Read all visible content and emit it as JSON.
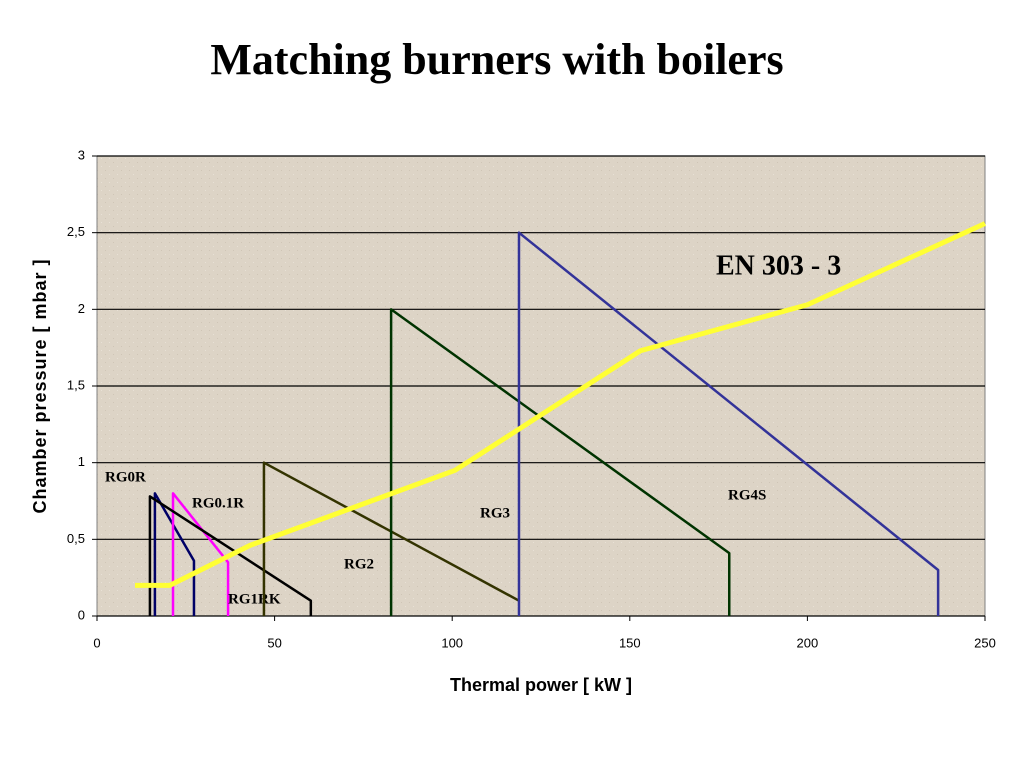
{
  "chart_data": {
    "type": "line",
    "title": "Matching burners with boilers",
    "x_label": "Thermal power [ kW ]",
    "y_label": "Chamber pressure [ mbar ]",
    "xlim": [
      0,
      250
    ],
    "xticks": [
      0,
      50,
      100,
      150,
      200,
      250
    ],
    "ylim": [
      0,
      3
    ],
    "yticks": [
      0,
      {
        "value": 0.5,
        "label": "0,5"
      },
      1,
      {
        "value": 1.5,
        "label": "1,5"
      },
      2,
      {
        "value": 2.5,
        "label": "2,5"
      },
      3
    ],
    "grid": true,
    "series": [
      {
        "name": "RG0R",
        "color": "#000066",
        "x": [
          16.3,
          16.3,
          27.3,
          27.3
        ],
        "y": [
          0,
          0.8,
          0.36,
          0
        ]
      },
      {
        "name": "RG0.1R",
        "color": "#ff00ff",
        "x": [
          21.4,
          21.4,
          36.9,
          36.9
        ],
        "y": [
          0,
          0.8,
          0.35,
          0
        ]
      },
      {
        "name": "RG1RK",
        "color": "#000000",
        "x": [
          14.9,
          14.9,
          60.2,
          60.2
        ],
        "y": [
          0,
          0.78,
          0.1,
          0
        ]
      },
      {
        "name": "RG2",
        "color": "#333300",
        "x": [
          47,
          47,
          118.8
        ],
        "y": [
          0,
          1,
          0.1
        ]
      },
      {
        "name": "RG3",
        "color": "#003300",
        "x": [
          82.8,
          82.8,
          178,
          178
        ],
        "y": [
          0,
          2,
          0.41,
          0
        ]
      },
      {
        "name": "RG4S",
        "color": "#333399",
        "x": [
          118.8,
          118.8,
          236.8,
          236.8
        ],
        "y": [
          0,
          2.5,
          0.3,
          0
        ]
      },
      {
        "name": "EN 303 - 3",
        "color": "#ffff33",
        "x": [
          10.7,
          20.5,
          43,
          100.8,
          153,
          200,
          250
        ],
        "y": [
          0.2,
          0.2,
          0.46,
          0.95,
          1.73,
          2.03,
          2.56
        ]
      }
    ]
  }
}
